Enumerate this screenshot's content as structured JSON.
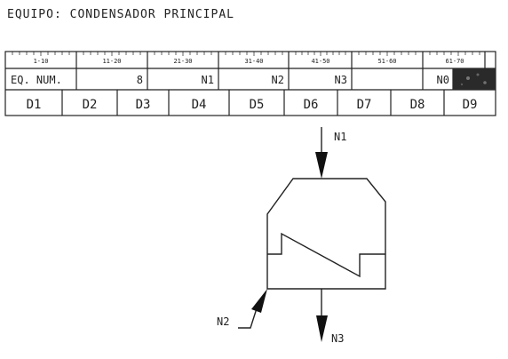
{
  "title": "EQUIPO: CONDENSADOR PRINCIPAL",
  "table": {
    "ranges": [
      "1-10",
      "11-20",
      "21-30",
      "31-40",
      "41-50",
      "51-60",
      "61-70"
    ],
    "row2": {
      "label": "EQ. NUM.",
      "num": "8",
      "n1": "N1",
      "n2": "N2",
      "n3": "N3",
      "n0": "N0"
    },
    "row3": [
      "D1",
      "D2",
      "D3",
      "D4",
      "D5",
      "D6",
      "D7",
      "D8",
      "D9"
    ]
  },
  "diagram": {
    "top_inlet": "N1",
    "side_inlet": "N2",
    "bottom_outlet": "N3"
  }
}
